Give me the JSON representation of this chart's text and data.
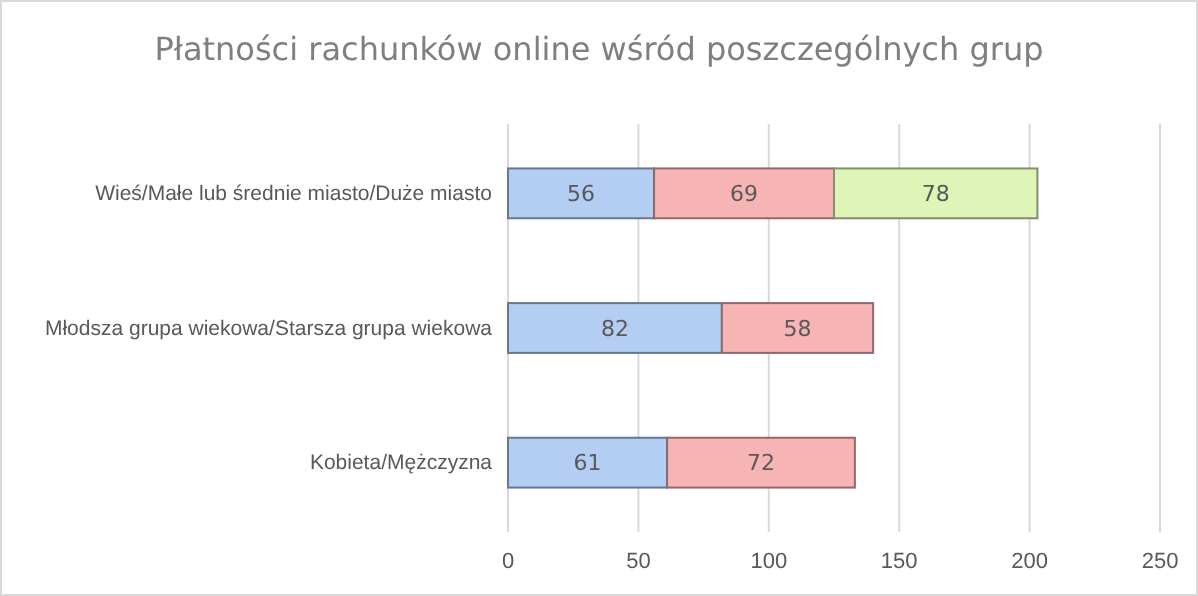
{
  "chart_data": {
    "type": "bar",
    "orientation": "horizontal",
    "stacked": true,
    "title": "Płatności rachunków online wśród poszczególnych grup",
    "categories": [
      "Wieś/Małe lub średnie miasto/Duże miasto",
      "Młodsza grupa wiekowa/Starsza grupa wiekowa",
      "Kobieta/Mężczyzna"
    ],
    "series": [
      {
        "color": "#b4cdf2",
        "values": [
          56,
          82,
          61
        ]
      },
      {
        "color": "#f7b4b4",
        "values": [
          69,
          58,
          72
        ]
      },
      {
        "color": "#dff5b8",
        "values": [
          78,
          null,
          null
        ]
      }
    ],
    "xlim": [
      0,
      250
    ],
    "xticks": [
      0,
      50,
      100,
      150,
      200,
      250
    ],
    "grid": "x",
    "data_labels": true
  }
}
